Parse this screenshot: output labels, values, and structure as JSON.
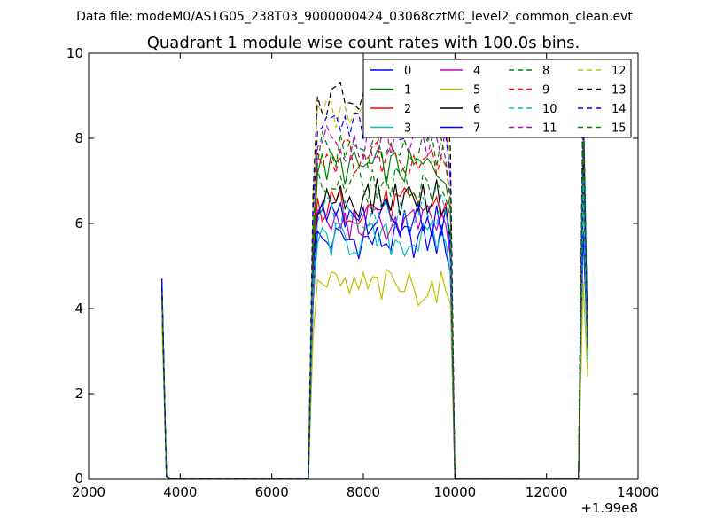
{
  "figure": {
    "suptitle": "Data file: modeM0/AS1G05_238T03_9000000424_03068cztM0_level2_common_clean.evt"
  },
  "chart_data": {
    "type": "line",
    "title": "Quadrant 1 module wise count rates with 100.0s bins.",
    "xlabel": "",
    "ylabel": "",
    "xlim": [
      2000,
      14000
    ],
    "ylim": [
      0,
      10
    ],
    "x_offset_label": "+1.99e8",
    "xticks": [
      2000,
      4000,
      6000,
      8000,
      10000,
      12000,
      14000
    ],
    "xtick_labels": [
      "2000",
      "4000",
      "6000",
      "8000",
      "10000",
      "12000",
      "14000"
    ],
    "yticks": [
      0,
      2,
      4,
      6,
      8,
      10
    ],
    "ytick_labels": [
      "0",
      "2",
      "4",
      "6",
      "8",
      "10"
    ],
    "grid": false,
    "legend_position": "top-right",
    "legend_columns": 4,
    "x_segments": [
      {
        "start": 3600,
        "end": 3700,
        "step": 100
      },
      {
        "start": 3800,
        "end": 6800,
        "step": 100
      },
      {
        "start": 6900,
        "end": 9900,
        "step": 100
      },
      {
        "start": 10000,
        "end": 12700,
        "step": 100
      },
      {
        "start": 12800,
        "end": 12900,
        "step": 100
      }
    ],
    "series": [
      {
        "name": "0",
        "color": "#0000ff",
        "dash": "solid",
        "active_level": 5.6,
        "edge": [
          4.6,
          4.1,
          2.9
        ]
      },
      {
        "name": "1",
        "color": "#008000",
        "dash": "solid",
        "active_level": 7.3,
        "edge": [
          4.5,
          4.0,
          2.9
        ]
      },
      {
        "name": "2",
        "color": "#ff0000",
        "dash": "solid",
        "active_level": 6.4,
        "edge": [
          4.3,
          3.9,
          3.0
        ]
      },
      {
        "name": "3",
        "color": "#00bfbf",
        "dash": "solid",
        "active_level": 5.6,
        "edge": [
          4.2,
          3.8,
          2.8
        ]
      },
      {
        "name": "4",
        "color": "#bf00bf",
        "dash": "solid",
        "active_level": 6.0,
        "edge": [
          4.4,
          3.9,
          3.0
        ]
      },
      {
        "name": "5",
        "color": "#bfbf00",
        "dash": "solid",
        "active_level": 4.5,
        "edge": [
          3.7,
          3.5,
          2.4
        ]
      },
      {
        "name": "6",
        "color": "#000000",
        "dash": "solid",
        "active_level": 6.6,
        "edge": [
          4.4,
          4.0,
          3.2
        ]
      },
      {
        "name": "7",
        "color": "#0000ff",
        "dash": "solid",
        "active_level": 6.1,
        "edge": [
          4.7,
          4.2,
          3.3
        ]
      },
      {
        "name": "8",
        "color": "#008000",
        "dash": "dashed",
        "active_level": 6.9,
        "edge": [
          4.5,
          4.1,
          3.1
        ]
      },
      {
        "name": "9",
        "color": "#ff0000",
        "dash": "dashed",
        "active_level": 7.6,
        "edge": [
          4.3,
          4.0,
          3.0
        ]
      },
      {
        "name": "10",
        "color": "#00bfbf",
        "dash": "dashed",
        "active_level": 6.3,
        "edge": [
          4.2,
          3.9,
          3.0
        ]
      },
      {
        "name": "11",
        "color": "#bf00bf",
        "dash": "dashed",
        "active_level": 7.9,
        "edge": [
          4.4,
          4.0,
          3.1
        ]
      },
      {
        "name": "12",
        "color": "#bfbf00",
        "dash": "dashed",
        "active_level": 8.5,
        "edge": [
          4.2,
          4.0,
          3.0
        ]
      },
      {
        "name": "13",
        "color": "#000000",
        "dash": "dashed",
        "active_level": 8.9,
        "edge": [
          4.5,
          4.2,
          3.2
        ]
      },
      {
        "name": "14",
        "color": "#0000ff",
        "dash": "dashed",
        "active_level": 8.4,
        "edge": [
          4.7,
          4.1,
          3.1
        ]
      },
      {
        "name": "15",
        "color": "#008000",
        "dash": "dashed",
        "active_level": 7.7,
        "edge": [
          4.4,
          4.0,
          3.0
        ]
      }
    ]
  }
}
